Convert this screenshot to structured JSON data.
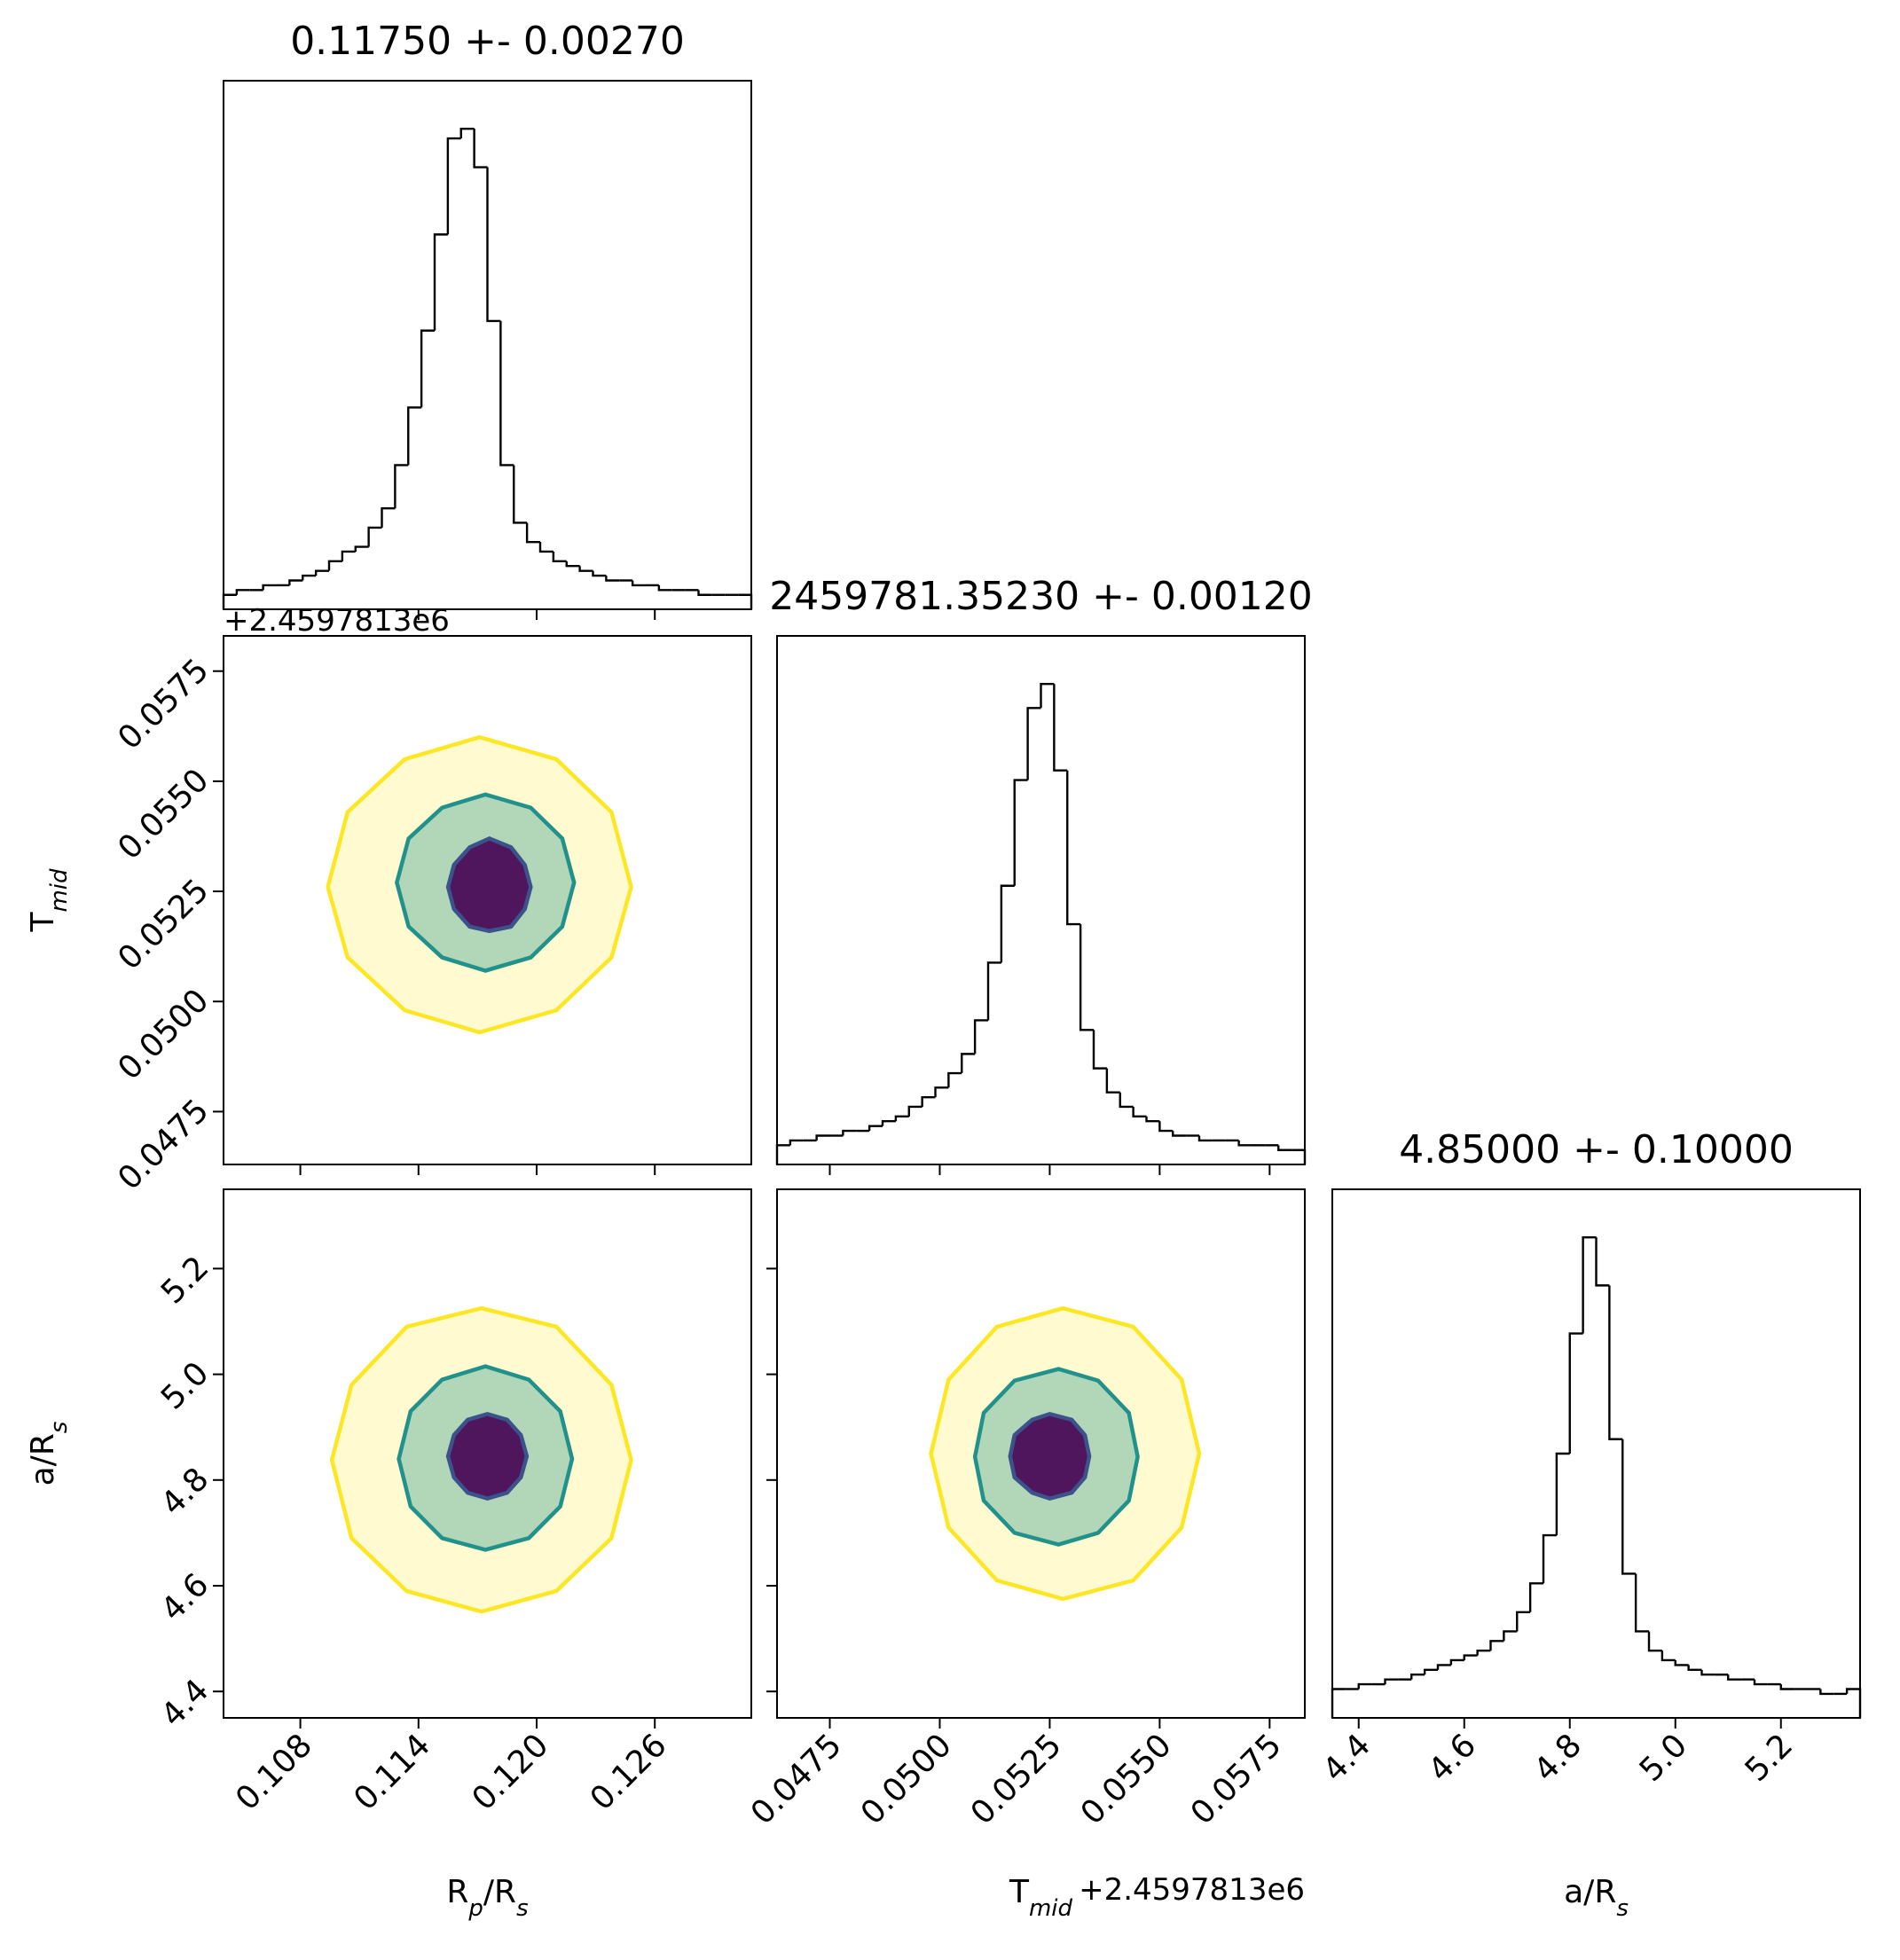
{
  "chart_data": [
    {
      "type": "histogram",
      "title": "0.11750 +- 0.00270",
      "bins": [
        0.1041,
        0.10477,
        0.10544,
        0.10611,
        0.10678,
        0.10745,
        0.10812,
        0.10879,
        0.10946,
        0.11013,
        0.1108,
        0.11147,
        0.11214,
        0.11281,
        0.11348,
        0.11415,
        0.11482,
        0.11549,
        0.11616,
        0.11683,
        0.1175,
        0.11817,
        0.11884,
        0.11951,
        0.12018,
        0.12085,
        0.12152,
        0.12219,
        0.12286,
        0.12353,
        0.1242,
        0.12487,
        0.12554,
        0.12621,
        0.12688,
        0.12755,
        0.12822,
        0.12889,
        0.12956,
        0.13023,
        0.1309
      ],
      "values": [
        3,
        4,
        4,
        5,
        5,
        6,
        7,
        8,
        10,
        12,
        13,
        17,
        21,
        30,
        42,
        58,
        78,
        98,
        100,
        92,
        60,
        30,
        18,
        14,
        12,
        10,
        9,
        8,
        7,
        6,
        6,
        5,
        5,
        4,
        4,
        4,
        3,
        3,
        3,
        3
      ],
      "color": "#000000",
      "xlim": [
        0.1041,
        0.1309
      ],
      "ylim": [
        0,
        110
      ],
      "xticks": [
        0.108,
        0.114,
        {
          "value": 0.12,
          "label": "0.120"
        },
        0.126
      ],
      "xtick_labels": false
    },
    {
      "type": "contour",
      "xlim": [
        0.1041,
        0.1309
      ],
      "ylim": [
        0.0463,
        0.0583
      ],
      "xticks": [
        0.108,
        0.114,
        {
          "value": 0.12,
          "label": "0.120"
        },
        0.126
      ],
      "xtick_labels": false,
      "yticks": [
        0.0475,
        {
          "value": 0.05,
          "label": "0.0500"
        },
        0.0525,
        {
          "value": 0.055,
          "label": "0.0550"
        },
        0.0575
      ],
      "ytick_labels": true,
      "ylabel": [
        {
          "text": "T"
        },
        {
          "text": "mid",
          "sub": true
        }
      ],
      "y_offset": "+2.4597813e6",
      "series": [
        {
          "color": "#fde725",
          "fill": "#fde725",
          "fill_opacity": 0.22,
          "x": [
            0.1248,
            0.1238,
            0.121,
            0.1171,
            0.1133,
            0.1104,
            0.1094,
            0.1104,
            0.1133,
            0.1171,
            0.121,
            0.1238
          ],
          "y": [
            0.0526,
            0.0543,
            0.0555,
            0.056,
            0.0555,
            0.0543,
            0.0526,
            0.051,
            0.0498,
            0.0493,
            0.0498,
            0.051
          ]
        },
        {
          "color": "#21918c",
          "fill": "#21918c",
          "fill_opacity": 0.35,
          "x": [
            0.1219,
            0.1213,
            0.1197,
            0.1174,
            0.1152,
            0.1135,
            0.1129,
            0.1135,
            0.1152,
            0.1174,
            0.1197,
            0.1213
          ],
          "y": [
            0.0527,
            0.0537,
            0.0544,
            0.0547,
            0.0544,
            0.0537,
            0.0527,
            0.0517,
            0.051,
            0.0507,
            0.051,
            0.0517
          ]
        },
        {
          "color": "#3b528b",
          "fill": "#440154",
          "fill_opacity": 0.9,
          "x": [
            0.1197,
            0.1194,
            0.1187,
            0.1176,
            0.1166,
            0.1158,
            0.1155,
            0.1158,
            0.1166,
            0.1176,
            0.1187,
            0.1194
          ],
          "y": [
            0.0526,
            0.0531,
            0.0535,
            0.0537,
            0.0535,
            0.0531,
            0.0526,
            0.0521,
            0.0517,
            0.0516,
            0.0517,
            0.0521
          ]
        }
      ]
    },
    {
      "type": "histogram",
      "title": "2459781.35230 +- 0.00120",
      "bins": [
        0.0463,
        0.0466,
        0.0469,
        0.0472,
        0.0475,
        0.0478,
        0.0481,
        0.0484,
        0.0487,
        0.049,
        0.0493,
        0.0496,
        0.0499,
        0.0502,
        0.0505,
        0.0508,
        0.0511,
        0.0514,
        0.0517,
        0.052,
        0.0523,
        0.0526,
        0.0529,
        0.0532,
        0.0535,
        0.0538,
        0.0541,
        0.0544,
        0.0547,
        0.055,
        0.0553,
        0.0556,
        0.0559,
        0.0562,
        0.0565,
        0.0568,
        0.0571,
        0.0574,
        0.0577,
        0.058,
        0.0583
      ],
      "values": [
        4,
        5,
        5,
        6,
        6,
        7,
        7,
        8,
        9,
        10,
        12,
        14,
        16,
        19,
        23,
        30,
        42,
        58,
        80,
        95,
        100,
        82,
        50,
        28,
        20,
        15,
        12,
        10,
        9,
        7,
        6,
        6,
        5,
        5,
        5,
        4,
        4,
        4,
        3,
        3
      ],
      "color": "#000000",
      "xlim": [
        0.0463,
        0.0583
      ],
      "ylim": [
        0,
        110
      ],
      "xticks": [
        0.0475,
        {
          "value": 0.05,
          "label": "0.0500"
        },
        0.0525,
        {
          "value": 0.055,
          "label": "0.0550"
        },
        0.0575
      ],
      "xtick_labels": false
    },
    {
      "type": "contour",
      "xlim": [
        0.1041,
        0.1309
      ],
      "ylim": [
        4.35,
        5.35
      ],
      "xticks": [
        0.108,
        0.114,
        {
          "value": 0.12,
          "label": "0.120"
        },
        0.126
      ],
      "xtick_labels": true,
      "yticks": [
        4.4,
        4.6,
        4.8,
        {
          "value": 5,
          "label": "5.0"
        },
        5.2
      ],
      "ytick_labels": true,
      "xlabel": [
        {
          "text": "R"
        },
        {
          "text": "p",
          "sub": true
        },
        {
          "text": "/R"
        },
        {
          "text": "s",
          "sub": true
        }
      ],
      "ylabel": [
        {
          "text": "a/R"
        },
        {
          "text": "s",
          "sub": true
        }
      ],
      "series": [
        {
          "color": "#fde725",
          "fill": "#fde725",
          "fill_opacity": 0.22,
          "x": [
            0.1248,
            0.1238,
            0.121,
            0.1172,
            0.1134,
            0.1106,
            0.1096,
            0.1106,
            0.1134,
            0.1172,
            0.121,
            0.1238
          ],
          "y": [
            4.838,
            4.98,
            5.09,
            5.125,
            5.09,
            4.98,
            4.838,
            4.69,
            4.59,
            4.551,
            4.59,
            4.69
          ]
        },
        {
          "color": "#21918c",
          "fill": "#21918c",
          "fill_opacity": 0.35,
          "x": [
            0.1218,
            0.1212,
            0.1196,
            0.1174,
            0.1152,
            0.1136,
            0.113,
            0.1136,
            0.1152,
            0.1174,
            0.1196,
            0.1212
          ],
          "y": [
            4.84,
            4.93,
            4.99,
            5.015,
            4.99,
            4.93,
            4.84,
            4.75,
            4.69,
            4.668,
            4.69,
            4.75
          ]
        },
        {
          "color": "#3b528b",
          "fill": "#440154",
          "fill_opacity": 0.9,
          "x": [
            0.1195,
            0.1192,
            0.1185,
            0.1175,
            0.1165,
            0.1158,
            0.1155,
            0.1158,
            0.1165,
            0.1175,
            0.1185,
            0.1192
          ],
          "y": [
            4.845,
            4.885,
            4.914,
            4.925,
            4.914,
            4.885,
            4.845,
            4.805,
            4.776,
            4.765,
            4.776,
            4.805
          ]
        }
      ]
    },
    {
      "type": "contour",
      "xlim": [
        0.0463,
        0.0583
      ],
      "ylim": [
        4.35,
        5.35
      ],
      "xticks": [
        0.0475,
        {
          "value": 0.05,
          "label": "0.0500"
        },
        0.0525,
        {
          "value": 0.055,
          "label": "0.0550"
        },
        0.0575
      ],
      "xtick_labels": true,
      "yticks": [
        4.4,
        4.6,
        4.8,
        {
          "value": 5,
          "label": "5.0"
        },
        5.2
      ],
      "ytick_labels": false,
      "xlabel": [
        {
          "text": "T"
        },
        {
          "text": "mid",
          "sub": true
        }
      ],
      "x_offset": "+2.4597813e6",
      "series": [
        {
          "color": "#fde725",
          "fill": "#fde725",
          "fill_opacity": 0.22,
          "x": [
            0.0559,
            0.0555,
            0.0544,
            0.0528,
            0.0513,
            0.0502,
            0.0498,
            0.0502,
            0.0513,
            0.0528,
            0.0544,
            0.0555
          ],
          "y": [
            4.85,
            4.99,
            5.09,
            5.125,
            5.09,
            4.99,
            4.85,
            4.71,
            4.61,
            4.575,
            4.61,
            4.71
          ]
        },
        {
          "color": "#21918c",
          "fill": "#21918c",
          "fill_opacity": 0.35,
          "x": [
            0.0545,
            0.0543,
            0.0536,
            0.0527,
            0.0517,
            0.051,
            0.0508,
            0.051,
            0.0517,
            0.0527,
            0.0536,
            0.0543
          ],
          "y": [
            4.844,
            4.927,
            4.988,
            5.01,
            4.988,
            4.927,
            4.844,
            4.761,
            4.7,
            4.678,
            4.7,
            4.761
          ]
        },
        {
          "color": "#3b528b",
          "fill": "#440154",
          "fill_opacity": 0.9,
          "x": [
            0.0534,
            0.0533,
            0.053,
            0.0525,
            0.0521,
            0.0517,
            0.0516,
            0.0517,
            0.0521,
            0.0525,
            0.053,
            0.0533
          ],
          "y": [
            4.845,
            4.885,
            4.914,
            4.925,
            4.914,
            4.885,
            4.845,
            4.805,
            4.776,
            4.765,
            4.776,
            4.805
          ]
        }
      ]
    },
    {
      "type": "histogram",
      "title": "4.85000 +- 0.10000",
      "bins": [
        4.35,
        4.375,
        4.4,
        4.425,
        4.45,
        4.475,
        4.5,
        4.525,
        4.55,
        4.575,
        4.6,
        4.625,
        4.65,
        4.675,
        4.7,
        4.725,
        4.75,
        4.775,
        4.8,
        4.825,
        4.85,
        4.875,
        4.9,
        4.925,
        4.95,
        4.975,
        5.0,
        5.025,
        5.05,
        5.075,
        5.1,
        5.125,
        5.15,
        5.175,
        5.2,
        5.225,
        5.25,
        5.275,
        5.3,
        5.325,
        5.35
      ],
      "values": [
        6,
        6,
        7,
        7,
        8,
        8,
        9,
        10,
        11,
        12,
        13,
        14,
        16,
        18,
        22,
        28,
        38,
        55,
        80,
        100,
        90,
        58,
        30,
        18,
        14,
        12,
        11,
        10,
        9,
        9,
        8,
        8,
        7,
        7,
        6,
        6,
        6,
        5,
        5,
        6
      ],
      "color": "#000000",
      "xlim": [
        4.35,
        5.35
      ],
      "ylim": [
        0,
        110
      ],
      "xticks": [
        4.4,
        4.6,
        4.8,
        {
          "value": 5,
          "label": "5.0"
        },
        5.2
      ],
      "xtick_labels": true,
      "xlabel": [
        {
          "text": "a/R"
        },
        {
          "text": "s",
          "sub": true
        }
      ]
    }
  ]
}
